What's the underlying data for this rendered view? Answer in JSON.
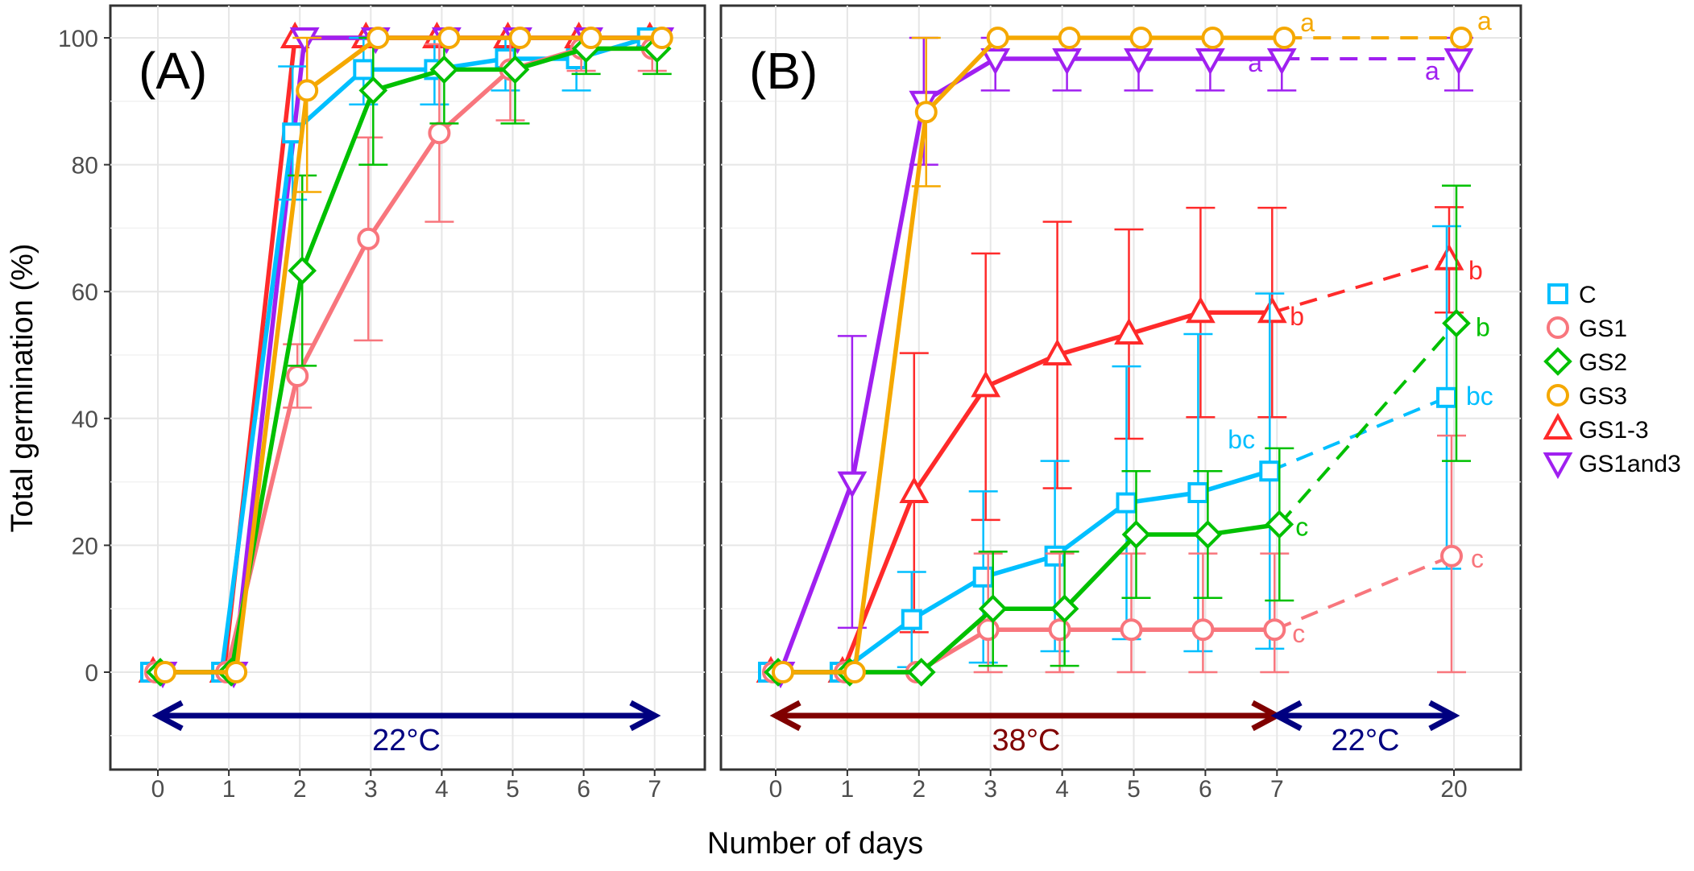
{
  "chart_data": [
    {
      "type": "line",
      "title": "(A)",
      "ylabel": "Total germination (%)",
      "xlabel": "Number of days",
      "ylim": [
        -15,
        105
      ],
      "x": [
        0,
        1,
        2,
        3,
        4,
        5,
        6,
        7
      ],
      "x_ticks": [
        "0",
        "1",
        "2",
        "3",
        "4",
        "5",
        "6",
        "7"
      ],
      "y_ticks": [
        "0",
        "20",
        "40",
        "60",
        "80",
        "100"
      ],
      "annotation": "22°C",
      "grid": true,
      "series": [
        {
          "name": "C",
          "values": [
            0,
            0,
            85,
            95,
            95,
            96.7,
            96.7,
            100
          ],
          "err": [
            0,
            0,
            10.5,
            5.5,
            5.5,
            5,
            5,
            0
          ]
        },
        {
          "name": "GS1",
          "values": [
            0,
            0,
            46.7,
            68.3,
            85,
            95,
            98.3,
            98.3
          ],
          "err": [
            0,
            0,
            5,
            16,
            14,
            8,
            3.5,
            3.5
          ]
        },
        {
          "name": "GS2",
          "values": [
            0,
            0,
            63.3,
            91.7,
            95,
            95,
            98.3,
            98.3
          ],
          "err": [
            0,
            0,
            15,
            11.7,
            8.5,
            8.5,
            4,
            4
          ]
        },
        {
          "name": "GS3",
          "values": [
            0,
            0,
            91.7,
            100,
            100,
            100,
            100,
            100
          ],
          "err": [
            0,
            0,
            16,
            0,
            0,
            0,
            0,
            0
          ]
        },
        {
          "name": "GS1-3",
          "values": [
            0,
            0,
            100,
            100,
            100,
            100,
            100,
            100
          ],
          "err": [
            0,
            0,
            0,
            0,
            0,
            0,
            0,
            0
          ]
        },
        {
          "name": "GS1and3",
          "values": [
            0,
            0,
            100,
            100,
            100,
            100,
            100,
            100
          ],
          "err": [
            0,
            0,
            0,
            0,
            0,
            0,
            0,
            0
          ]
        }
      ]
    },
    {
      "type": "line",
      "title": "(B)",
      "ylim": [
        -15,
        105
      ],
      "x": [
        0,
        1,
        2,
        3,
        4,
        5,
        6,
        7,
        20
      ],
      "x_ticks": [
        "0",
        "1",
        "2",
        "3",
        "4",
        "5",
        "6",
        "7",
        "20"
      ],
      "annotations": [
        "38°C",
        "22°C"
      ],
      "grid": true,
      "series": [
        {
          "name": "C",
          "values": [
            0,
            0,
            8.3,
            15,
            18.3,
            26.7,
            28.3,
            31.7,
            43.3
          ],
          "err": [
            0,
            0,
            7.5,
            13.5,
            15,
            21.5,
            25,
            28,
            27
          ],
          "letter": "bc",
          "letter20": "bc"
        },
        {
          "name": "GS1",
          "values": [
            0,
            0,
            0,
            6.7,
            6.7,
            6.7,
            6.7,
            6.7,
            18.3
          ],
          "err": [
            0,
            0,
            0,
            12,
            12,
            12,
            12,
            12,
            19
          ],
          "letter": "c",
          "letter20": "c"
        },
        {
          "name": "GS2",
          "values": [
            0,
            0,
            0,
            10,
            10,
            21.7,
            21.7,
            23.3,
            55
          ],
          "err": [
            0,
            0,
            0,
            9,
            9,
            10,
            10,
            12,
            21.7
          ],
          "letter": "c",
          "letter20": "b"
        },
        {
          "name": "GS3",
          "values": [
            0,
            0,
            88.3,
            100,
            100,
            100,
            100,
            100,
            100
          ],
          "err": [
            0,
            0,
            11.7,
            0,
            0,
            0,
            0,
            0,
            0
          ],
          "letter": "a",
          "letter20": "a"
        },
        {
          "name": "GS1-3",
          "values": [
            0,
            0,
            28.3,
            45,
            50,
            53.3,
            56.7,
            56.7,
            65
          ],
          "err": [
            0,
            0,
            22,
            21,
            21,
            16.5,
            16.5,
            16.5,
            8.3
          ],
          "letter": "b",
          "letter20": "b"
        },
        {
          "name": "GS1and3",
          "values": [
            0,
            30,
            90,
            96.7,
            96.7,
            96.7,
            96.7,
            96.7,
            96.7
          ],
          "err": [
            0,
            23,
            10,
            5,
            5,
            5,
            5,
            5,
            5
          ],
          "letter": "a",
          "letter20": "a"
        }
      ]
    }
  ],
  "legend": [
    {
      "name": "C",
      "color": "#00bfff",
      "shape": "square"
    },
    {
      "name": "GS1",
      "color": "#f8767d",
      "shape": "circle"
    },
    {
      "name": "GS2",
      "color": "#00c000",
      "shape": "diamond"
    },
    {
      "name": "GS3",
      "color": "#f5a800",
      "shape": "circle"
    },
    {
      "name": "GS1-3",
      "color": "#ff2a2a",
      "shape": "triangle-up"
    },
    {
      "name": "GS1and3",
      "color": "#a020f0",
      "shape": "triangle-down"
    }
  ],
  "colors": {
    "hot": "#800000",
    "cool": "#000080"
  }
}
